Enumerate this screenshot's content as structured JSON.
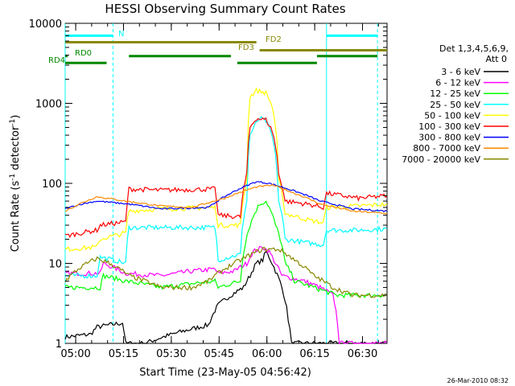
{
  "chart_data": {
    "type": "line",
    "title": "HESSI Observing Summary Count Rates",
    "xlabel": "Start Time (23-May-05 04:56:42)",
    "ylabel_main": "Count Rate (s",
    "ylabel_sup1": "-1",
    "ylabel_mid": " detector",
    "ylabel_sup2": "-1",
    "ylabel_end": ")",
    "footer": "26-Mar-2010 08:32",
    "x_scale": "time",
    "x_unit": "minutes since 04:56:42",
    "xlim": [
      0,
      101
    ],
    "y_scale": "log",
    "ylim": [
      1,
      10000
    ],
    "x_ticks": [
      {
        "label": "05:00",
        "x": 3.3
      },
      {
        "label": "05:15",
        "x": 18.3
      },
      {
        "label": "05:30",
        "x": 33.3
      },
      {
        "label": "05:45",
        "x": 48.3
      },
      {
        "label": "06:00",
        "x": 63.3
      },
      {
        "label": "06:15",
        "x": 78.3
      },
      {
        "label": "06:30",
        "x": 93.3
      }
    ],
    "y_ticks": [
      {
        "label": "1",
        "y": 1
      },
      {
        "label": "10",
        "y": 10
      },
      {
        "label": "100",
        "y": 100
      },
      {
        "label": "1000",
        "y": 1000
      },
      {
        "label": "10000",
        "y": 10000
      }
    ],
    "legend": {
      "position": "right",
      "header_line1": "Det 1,3,4,5,6,9,",
      "header_line2": "Att 0"
    },
    "series": [
      {
        "name": "3 - 6 keV",
        "color": "#000000",
        "values": [
          [
            0,
            1.2
          ],
          [
            8,
            1.3
          ],
          [
            10,
            1.6
          ],
          [
            18,
            1.8
          ],
          [
            19,
            1
          ],
          [
            25,
            1
          ],
          [
            45,
            1.7
          ],
          [
            48,
            3
          ],
          [
            52,
            4
          ],
          [
            56,
            5
          ],
          [
            58,
            7
          ],
          [
            60,
            10
          ],
          [
            62,
            11
          ],
          [
            63,
            14
          ],
          [
            64,
            12
          ],
          [
            66,
            8
          ],
          [
            68,
            5
          ],
          [
            70,
            2
          ],
          [
            71,
            1
          ],
          [
            101,
            1
          ]
        ]
      },
      {
        "name": "6 - 12 keV",
        "color": "#ff00ff",
        "values": [
          [
            0,
            7.5
          ],
          [
            11,
            7.5
          ],
          [
            12,
            10
          ],
          [
            19,
            7.5
          ],
          [
            30,
            7
          ],
          [
            40,
            8
          ],
          [
            47,
            8.5
          ],
          [
            48,
            7.5
          ],
          [
            53,
            8
          ],
          [
            57,
            10
          ],
          [
            59,
            14
          ],
          [
            62,
            16
          ],
          [
            64,
            14
          ],
          [
            66,
            10
          ],
          [
            68,
            7
          ],
          [
            75,
            6
          ],
          [
            80,
            5
          ],
          [
            84,
            4
          ],
          [
            86,
            1
          ],
          [
            101,
            1
          ]
        ]
      },
      {
        "name": "12 - 25 keV",
        "color": "#00ff00",
        "values": [
          [
            0,
            5
          ],
          [
            11,
            5
          ],
          [
            12,
            7
          ],
          [
            19,
            6
          ],
          [
            30,
            5
          ],
          [
            47,
            6
          ],
          [
            48,
            5
          ],
          [
            55,
            6
          ],
          [
            58,
            30
          ],
          [
            61,
            55
          ],
          [
            63,
            60
          ],
          [
            64,
            50
          ],
          [
            66,
            30
          ],
          [
            69,
            10
          ],
          [
            72,
            6
          ],
          [
            78,
            5
          ],
          [
            85,
            4
          ],
          [
            101,
            4
          ]
        ]
      },
      {
        "name": "25 - 50 keV",
        "color": "#00ffff",
        "values": [
          [
            0,
            7
          ],
          [
            10,
            7
          ],
          [
            11,
            12
          ],
          [
            19,
            10
          ],
          [
            20,
            28
          ],
          [
            30,
            28
          ],
          [
            47,
            28
          ],
          [
            48,
            11
          ],
          [
            55,
            13
          ],
          [
            57,
            60
          ],
          [
            58,
            400
          ],
          [
            61,
            650
          ],
          [
            63,
            600
          ],
          [
            65,
            380
          ],
          [
            67,
            60
          ],
          [
            69,
            20
          ],
          [
            76,
            18
          ],
          [
            81,
            17
          ],
          [
            82,
            26
          ],
          [
            92,
            26
          ],
          [
            101,
            27
          ]
        ]
      },
      {
        "name": "50 - 100 keV",
        "color": "#ffff00",
        "values": [
          [
            0,
            15
          ],
          [
            10,
            16
          ],
          [
            11,
            20
          ],
          [
            19,
            24
          ],
          [
            20,
            45
          ],
          [
            30,
            48
          ],
          [
            47,
            50
          ],
          [
            48,
            30
          ],
          [
            55,
            30
          ],
          [
            57,
            110
          ],
          [
            58,
            1200
          ],
          [
            60,
            1450
          ],
          [
            63,
            1350
          ],
          [
            65,
            900
          ],
          [
            67,
            110
          ],
          [
            69,
            42
          ],
          [
            76,
            35
          ],
          [
            81,
            32
          ],
          [
            82,
            50
          ],
          [
            92,
            52
          ],
          [
            101,
            55
          ]
        ]
      },
      {
        "name": "100 - 300 keV",
        "color": "#ff0000",
        "values": [
          [
            0,
            22
          ],
          [
            10,
            26
          ],
          [
            11,
            30
          ],
          [
            19,
            33
          ],
          [
            20,
            85
          ],
          [
            30,
            82
          ],
          [
            47,
            85
          ],
          [
            48,
            40
          ],
          [
            55,
            38
          ],
          [
            57,
            130
          ],
          [
            58,
            500
          ],
          [
            60,
            650
          ],
          [
            63,
            620
          ],
          [
            65,
            450
          ],
          [
            67,
            130
          ],
          [
            69,
            60
          ],
          [
            76,
            55
          ],
          [
            81,
            50
          ],
          [
            82,
            75
          ],
          [
            92,
            65
          ],
          [
            101,
            70
          ]
        ]
      },
      {
        "name": "300 - 800 keV",
        "color": "#0000ff",
        "values": [
          [
            0,
            48
          ],
          [
            5,
            55
          ],
          [
            10,
            60
          ],
          [
            14,
            58
          ],
          [
            20,
            55
          ],
          [
            30,
            48
          ],
          [
            45,
            50
          ],
          [
            50,
            68
          ],
          [
            60,
            105
          ],
          [
            64,
            100
          ],
          [
            70,
            85
          ],
          [
            80,
            60
          ],
          [
            90,
            48
          ],
          [
            101,
            45
          ]
        ]
      },
      {
        "name": "800 - 7000 keV",
        "color": "#ff8800",
        "values": [
          [
            0,
            45
          ],
          [
            10,
            68
          ],
          [
            19,
            60
          ],
          [
            30,
            52
          ],
          [
            40,
            50
          ],
          [
            50,
            65
          ],
          [
            60,
            90
          ],
          [
            65,
            95
          ],
          [
            72,
            75
          ],
          [
            80,
            55
          ],
          [
            90,
            45
          ],
          [
            101,
            42
          ]
        ]
      },
      {
        "name": "7000 - 20000 keV",
        "color": "#888800",
        "values": [
          [
            0,
            6
          ],
          [
            5,
            9
          ],
          [
            10,
            11.5
          ],
          [
            14,
            10
          ],
          [
            20,
            7
          ],
          [
            30,
            5
          ],
          [
            40,
            5
          ],
          [
            45,
            6
          ],
          [
            55,
            11
          ],
          [
            62,
            15
          ],
          [
            67,
            15
          ],
          [
            72,
            11
          ],
          [
            78,
            7
          ],
          [
            84,
            5
          ],
          [
            90,
            4
          ],
          [
            101,
            4
          ]
        ]
      }
    ],
    "annotations": [
      {
        "label": "N",
        "color": "#00ffff"
      },
      {
        "label": "FD2",
        "color": "#888800"
      },
      {
        "label": "FD3",
        "color": "#888800"
      },
      {
        "label": "RD0",
        "color": "#008800"
      },
      {
        "label": "RD4",
        "color": "#008800"
      }
    ],
    "state_bars": [
      {
        "color": "#00ffff",
        "y": 7000,
        "segments": [
          [
            0,
            15
          ],
          [
            82,
            98
          ]
        ]
      },
      {
        "color": "#888800",
        "y": 5800,
        "segments": [
          [
            0,
            60
          ]
        ]
      },
      {
        "color": "#888800",
        "y": 4600,
        "segments": [
          [
            61,
            101
          ]
        ]
      },
      {
        "color": "#008800",
        "y": 3900,
        "segments": [
          [
            0,
            0.8
          ],
          [
            20,
            52
          ],
          [
            79,
            98
          ]
        ]
      },
      {
        "color": "#008800",
        "y": 3200,
        "segments": [
          [
            0,
            13
          ],
          [
            54,
            79
          ]
        ]
      }
    ],
    "vertical_markers": [
      {
        "x": 0,
        "style": "solid",
        "color": "#00ffff"
      },
      {
        "x": 15,
        "style": "dashed",
        "color": "#00ffff"
      },
      {
        "x": 82,
        "style": "solid",
        "color": "#00ffff"
      },
      {
        "x": 98,
        "style": "dashed",
        "color": "#00ffff"
      }
    ]
  }
}
